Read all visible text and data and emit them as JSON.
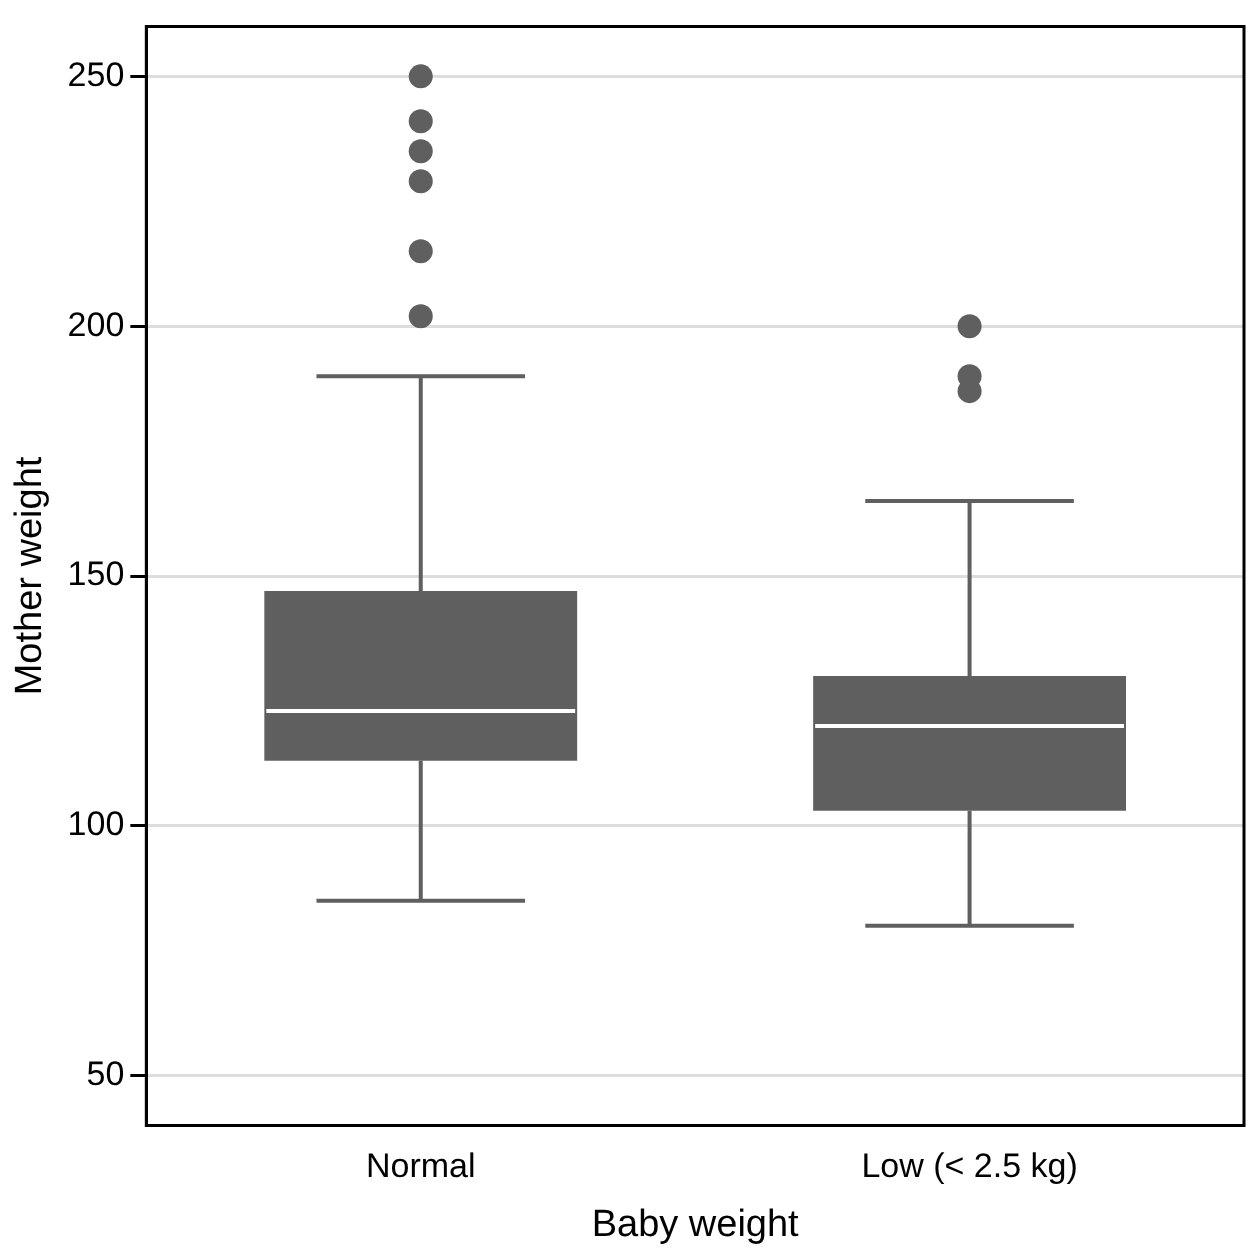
{
  "chart_data": {
    "type": "box",
    "xlabel": "Baby weight",
    "ylabel": "Mother weight",
    "categories": [
      "Normal",
      "Low (< 2.5 kg)"
    ],
    "color": "#5f5f5f",
    "boxes": [
      {
        "low": 85,
        "q1": 113,
        "median": 123,
        "q3": 147,
        "high": 190,
        "outliers": [
          250,
          241,
          235,
          229,
          215,
          202
        ]
      },
      {
        "low": 80,
        "q1": 103,
        "median": 120,
        "q3": 130,
        "high": 165,
        "outliers": [
          200,
          190,
          187
        ]
      }
    ],
    "ylim": [
      40,
      260
    ],
    "yticks": [
      50,
      100,
      150,
      200,
      250
    ],
    "grid": "y",
    "legend": false,
    "marker": "circle"
  }
}
